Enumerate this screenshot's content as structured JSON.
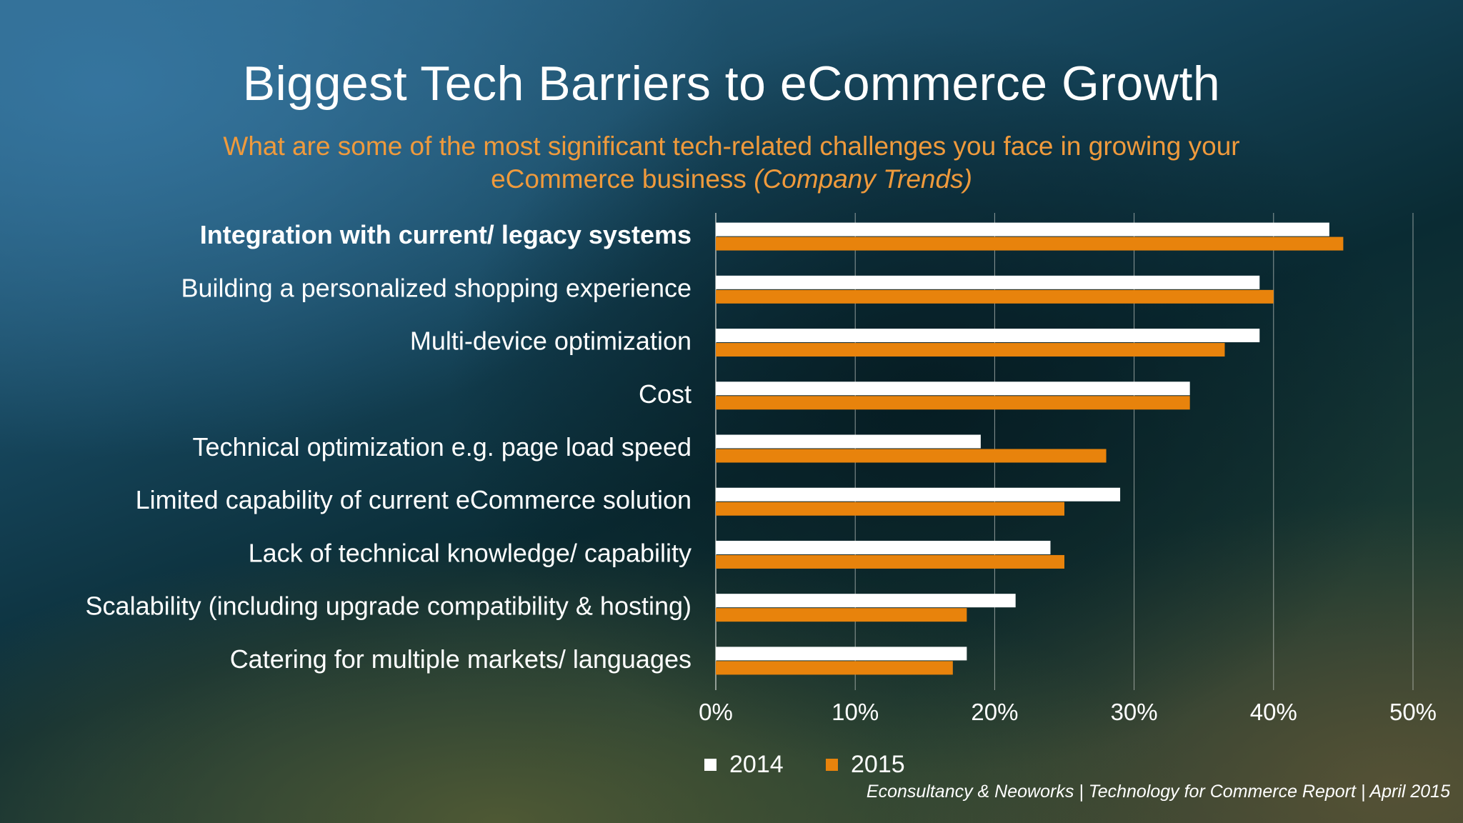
{
  "slide": {
    "title": "Biggest Tech Barriers to eCommerce Growth",
    "subtitle_line1": "What are some of the most significant tech-related challenges you face in growing your",
    "subtitle_line2": "eCommerce business",
    "subtitle_italic": "(Company Trends)",
    "source": "Econsultancy & Neoworks | Technology for Commerce Report |  April 2015"
  },
  "colors": {
    "series_2014": "#ffffff",
    "series_2015": "#e8830c",
    "subtitle": "#ef9a3c",
    "gridline": "#c8ccc8"
  },
  "chart_data": {
    "type": "bar",
    "orientation": "horizontal",
    "categories": [
      "Integration with current/ legacy systems",
      "Building a personalized shopping experience",
      "Multi-device optimization",
      "Cost",
      "Technical optimization e.g. page load speed",
      "Limited capability of current eCommerce solution",
      "Lack of technical knowledge/ capability",
      "Scalability (including upgrade compatibility & hosting)",
      "Catering for multiple markets/ languages"
    ],
    "series": [
      {
        "name": "2014",
        "values": [
          44,
          39,
          39,
          34,
          19,
          29,
          24,
          21.5,
          18
        ]
      },
      {
        "name": "2015",
        "values": [
          45,
          40,
          36.5,
          34,
          28,
          25,
          25,
          18,
          17
        ]
      }
    ],
    "xlim": [
      0,
      50
    ],
    "xticks": [
      "0%",
      "10%",
      "20%",
      "30%",
      "40%",
      "50%"
    ],
    "highlighted_category": "Integration with current/ legacy systems",
    "grid": "vertical",
    "legend_position": "bottom"
  }
}
